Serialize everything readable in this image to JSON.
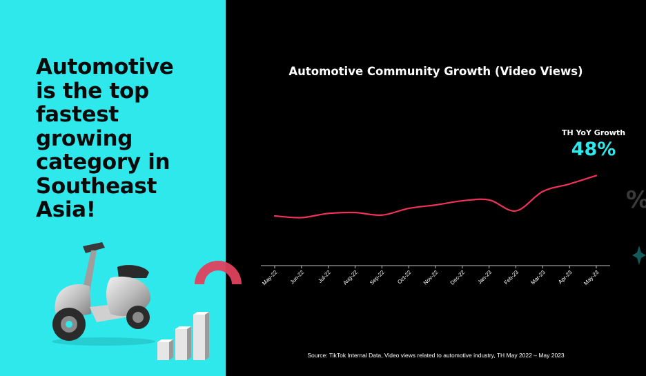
{
  "headline": {
    "lines": [
      "Automotive",
      "is the top",
      "fastest",
      "growing",
      "category in",
      "Southeast",
      "Asia!"
    ]
  },
  "colors": {
    "background": "#000000",
    "accent": "#2ee8ec",
    "line": "#f0325a",
    "text": "#ffffff"
  },
  "illustrations": {
    "scooter": "scooter-icon",
    "bars": "bar-chart-3d-icon",
    "arc": "arc-icon",
    "percent": "percent-icon",
    "star": "star-icon"
  },
  "callout": {
    "label": "TH YoY Growth",
    "value": "48%"
  },
  "source": "Source:  TikTok Internal Data, Video views related to automotive industry, TH May 2022 – May 2023",
  "chart_data": {
    "type": "line",
    "title": "Automotive Community Growth (Video Views)",
    "xlabel": "",
    "ylabel": "",
    "categories": [
      "May-22",
      "Jun-22",
      "Jul-22",
      "Aug-22",
      "Sep-22",
      "Oct-22",
      "Nov-22",
      "Dec-22",
      "Jan-23",
      "Feb-23",
      "Mar-23",
      "Apr-23",
      "May-23"
    ],
    "series": [
      {
        "values": [
          100,
          98,
          103,
          104,
          101,
          109,
          113,
          118,
          119,
          106,
          129,
          138,
          148
        ]
      }
    ],
    "ylim": [
      0,
      160
    ],
    "grid": false,
    "legend": "none"
  }
}
